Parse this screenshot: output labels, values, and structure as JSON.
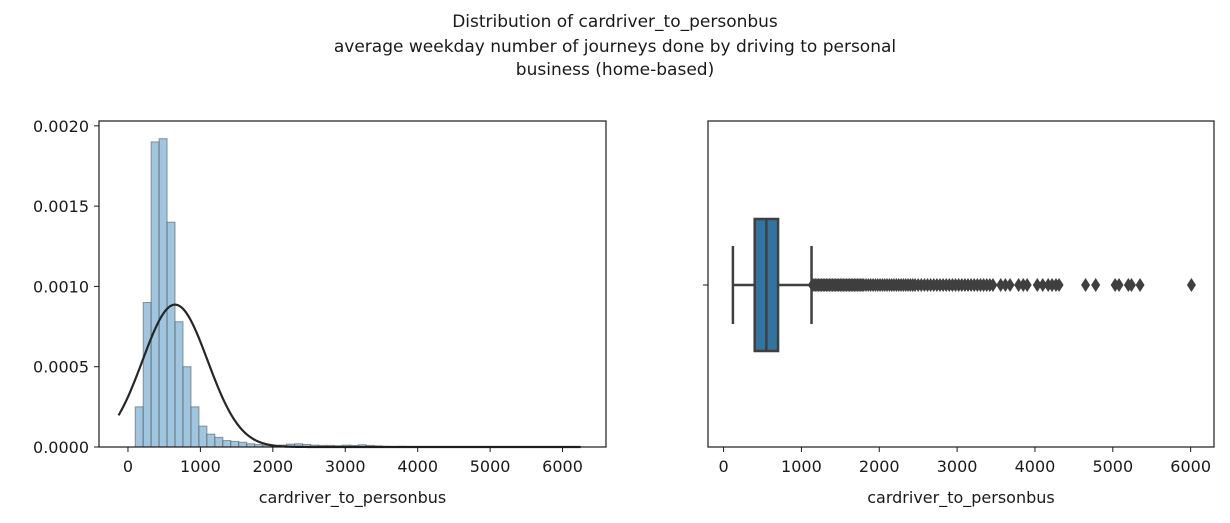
{
  "figure": {
    "title_lines": [
      "Distribution of cardriver_to_personbus",
      "average weekday number of journeys done by driving to personal",
      "business (home-based)"
    ]
  },
  "chart_data": [
    {
      "type": "histogram",
      "xlabel": "cardriver_to_personbus",
      "ylabel": "",
      "xlim": [
        -400,
        6600
      ],
      "ylim": [
        0,
        0.00203
      ],
      "xticks": [
        0,
        1000,
        2000,
        3000,
        4000,
        5000,
        6000
      ],
      "yticks": [
        0.0,
        0.0005,
        0.001,
        0.0015,
        0.002
      ],
      "ytick_labels": [
        "0.0000",
        "0.0005",
        "0.0010",
        "0.0015",
        "0.0020"
      ],
      "bar_color": "#8fbcd9",
      "bin_edges": [
        100,
        210,
        320,
        430,
        540,
        650,
        760,
        870,
        980,
        1090,
        1200,
        1310,
        1420,
        1530,
        1640,
        1750,
        1860,
        1970,
        2080,
        2190,
        2300,
        2410,
        2520,
        2630,
        2740,
        2850,
        2960,
        3070,
        3180,
        3290,
        3400,
        3510,
        3620,
        3730,
        3840,
        3950,
        4060,
        4170,
        4280,
        4390,
        4500,
        4610,
        4720,
        4830,
        4940,
        5050,
        5160,
        5270,
        5380,
        5490,
        5600,
        5710,
        5820,
        5930,
        6040,
        6150,
        6260
      ],
      "densities": [
        0.00025,
        0.0009,
        0.0019,
        0.00192,
        0.0014,
        0.00078,
        0.0005,
        0.00025,
        0.00013,
        8e-05,
        6e-05,
        4e-05,
        3.5e-05,
        3e-05,
        2e-05,
        1.5e-05,
        1e-05,
        1e-05,
        1.2e-05,
        1.8e-05,
        2e-05,
        1.6e-05,
        1.2e-05,
        1e-05,
        1e-05,
        8e-06,
        1.2e-05,
        1e-05,
        1.4e-05,
        1e-05,
        7e-06,
        4e-06,
        3e-06,
        4e-06,
        3e-06,
        3e-06,
        2e-06,
        2e-06,
        2e-06,
        1e-06,
        1e-06,
        1e-06,
        1e-06,
        1e-06,
        1e-06,
        1e-06,
        1e-06,
        1e-06,
        1e-06,
        1e-06,
        0.0,
        0.0,
        0.0,
        0.0,
        1e-06,
        0.0
      ],
      "fit_line": {
        "type": "normal",
        "mean": 650,
        "std": 450,
        "x_range": [
          -130,
          6250
        ],
        "color": "#262626"
      }
    },
    {
      "type": "box",
      "xlabel": "cardriver_to_personbus",
      "xlim": [
        -200,
        6300
      ],
      "xticks": [
        0,
        1000,
        2000,
        3000,
        4000,
        5000,
        6000
      ],
      "box_color": "#3274a1",
      "edge_color": "#3f3f3f",
      "whisker_low": 120,
      "q1": 400,
      "median": 550,
      "q3": 700,
      "whisker_high": 1130,
      "outliers": [
        1140,
        1160,
        1180,
        1200,
        1220,
        1240,
        1260,
        1280,
        1300,
        1320,
        1340,
        1360,
        1380,
        1400,
        1420,
        1440,
        1460,
        1480,
        1500,
        1520,
        1540,
        1560,
        1580,
        1600,
        1620,
        1640,
        1660,
        1680,
        1700,
        1720,
        1740,
        1760,
        1780,
        1800,
        1830,
        1860,
        1890,
        1920,
        1950,
        1980,
        2010,
        2040,
        2070,
        2100,
        2130,
        2160,
        2190,
        2220,
        2250,
        2280,
        2310,
        2340,
        2370,
        2400,
        2430,
        2460,
        2500,
        2540,
        2580,
        2620,
        2660,
        2700,
        2740,
        2780,
        2820,
        2860,
        2900,
        2940,
        2980,
        3020,
        3060,
        3100,
        3140,
        3180,
        3220,
        3260,
        3300,
        3340,
        3380,
        3420,
        3460,
        3560,
        3620,
        3680,
        3790,
        3850,
        3900,
        4030,
        4100,
        4170,
        4220,
        4270,
        4310,
        4650,
        4780,
        5030,
        5080,
        5200,
        5240,
        5350,
        6010
      ]
    }
  ]
}
